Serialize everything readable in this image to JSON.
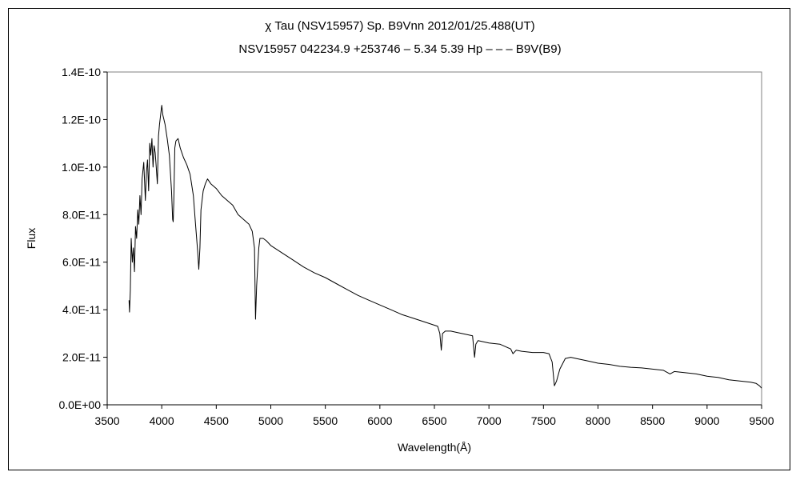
{
  "chart_data": {
    "type": "line",
    "title": "χ Tau (NSV15957)    Sp. B9Vnn    2012/01/25.488(UT)",
    "subtitle": "NSV15957 042234.9 +253746 – 5.34 5.39 Hp – – – B9V(B9)",
    "xlabel": "Wavelength(Å)",
    "ylabel": "Flux",
    "xlim": [
      3500,
      9500
    ],
    "ylim": [
      0,
      1.4e-10
    ],
    "x_ticks": [
      "3500",
      "4000",
      "4500",
      "5000",
      "5500",
      "6000",
      "6500",
      "7000",
      "7500",
      "8000",
      "8500",
      "9000",
      "9500"
    ],
    "y_ticks": [
      "0.0E+00",
      "2.0E-11",
      "4.0E-11",
      "6.0E-11",
      "8.0E-11",
      "1.0E-10",
      "1.2E-10",
      "1.4E-10"
    ],
    "grid": false,
    "line_color": "#000000",
    "series": [
      {
        "x": [
          3700,
          3705,
          3712,
          3720,
          3730,
          3740,
          3750,
          3760,
          3770,
          3780,
          3790,
          3800,
          3810,
          3820,
          3835,
          3850,
          3860,
          3870,
          3880,
          3890,
          3900,
          3910,
          3920,
          3930,
          3940,
          3950,
          3960,
          3970,
          3980,
          3990,
          4000,
          4010,
          4020,
          4030,
          4050,
          4070,
          4090,
          4100,
          4105,
          4110,
          4120,
          4130,
          4150,
          4170,
          4200,
          4230,
          4260,
          4290,
          4310,
          4330,
          4340,
          4350,
          4360,
          4380,
          4400,
          4420,
          4450,
          4500,
          4550,
          4600,
          4650,
          4700,
          4750,
          4800,
          4830,
          4850,
          4860,
          4870,
          4890,
          4900,
          4930,
          4960,
          5000,
          5100,
          5200,
          5300,
          5400,
          5500,
          5600,
          5700,
          5800,
          5900,
          6000,
          6100,
          6200,
          6300,
          6400,
          6500,
          6530,
          6550,
          6563,
          6575,
          6600,
          6650,
          6700,
          6800,
          6850,
          6868,
          6880,
          6900,
          6950,
          7000,
          7100,
          7150,
          7200,
          7220,
          7250,
          7300,
          7400,
          7500,
          7550,
          7580,
          7600,
          7620,
          7650,
          7700,
          7750,
          7800,
          7900,
          8000,
          8100,
          8200,
          8300,
          8400,
          8500,
          8600,
          8660,
          8700,
          8800,
          8900,
          9000,
          9100,
          9200,
          9300,
          9400,
          9450,
          9480,
          9500
        ],
        "y": [
          4.4e-11,
          3.9e-11,
          4.8e-11,
          7e-11,
          6e-11,
          6.6e-11,
          5.6e-11,
          7.5e-11,
          7e-11,
          8.2e-11,
          7.6e-11,
          8.8e-11,
          8e-11,
          9.5e-11,
          1.02e-10,
          8.6e-11,
          9.8e-11,
          1.03e-10,
          9e-11,
          1.1e-10,
          1.05e-10,
          1.12e-10,
          1e-10,
          1.09e-10,
          1.06e-10,
          1e-10,
          9.3e-11,
          1.13e-10,
          1.18e-10,
          1.22e-10,
          1.26e-10,
          1.22e-10,
          1.2e-10,
          1.18e-10,
          1.12e-10,
          1.05e-10,
          9e-11,
          7.8e-11,
          7.7e-11,
          8.5e-11,
          1.08e-10,
          1.11e-10,
          1.12e-10,
          1.08e-10,
          1.04e-10,
          1.01e-10,
          9.7e-11,
          8.8e-11,
          7.6e-11,
          6.4e-11,
          5.7e-11,
          6.6e-11,
          8.2e-11,
          9e-11,
          9.3e-11,
          9.5e-11,
          9.3e-11,
          9.1e-11,
          8.8e-11,
          8.6e-11,
          8.4e-11,
          8e-11,
          7.8e-11,
          7.6e-11,
          7.3e-11,
          6.6e-11,
          3.6e-11,
          5e-11,
          6.6e-11,
          7e-11,
          7e-11,
          6.9e-11,
          6.7e-11,
          6.4e-11,
          6.1e-11,
          5.8e-11,
          5.55e-11,
          5.35e-11,
          5.1e-11,
          4.85e-11,
          4.6e-11,
          4.4e-11,
          4.2e-11,
          4e-11,
          3.8e-11,
          3.65e-11,
          3.5e-11,
          3.35e-11,
          3.3e-11,
          3e-11,
          2.3e-11,
          3e-11,
          3.1e-11,
          3.1e-11,
          3.05e-11,
          2.95e-11,
          2.9e-11,
          2e-11,
          2.55e-11,
          2.7e-11,
          2.65e-11,
          2.6e-11,
          2.55e-11,
          2.45e-11,
          2.35e-11,
          2.15e-11,
          2.3e-11,
          2.25e-11,
          2.2e-11,
          2.2e-11,
          2.15e-11,
          1.8e-11,
          8e-12,
          1e-11,
          1.5e-11,
          1.95e-11,
          2e-11,
          1.95e-11,
          1.85e-11,
          1.75e-11,
          1.7e-11,
          1.62e-11,
          1.58e-11,
          1.55e-11,
          1.5e-11,
          1.45e-11,
          1.3e-11,
          1.4e-11,
          1.35e-11,
          1.3e-11,
          1.2e-11,
          1.15e-11,
          1.05e-11,
          1e-11,
          9.5e-12,
          9e-12,
          8e-12,
          7e-12
        ]
      }
    ]
  }
}
